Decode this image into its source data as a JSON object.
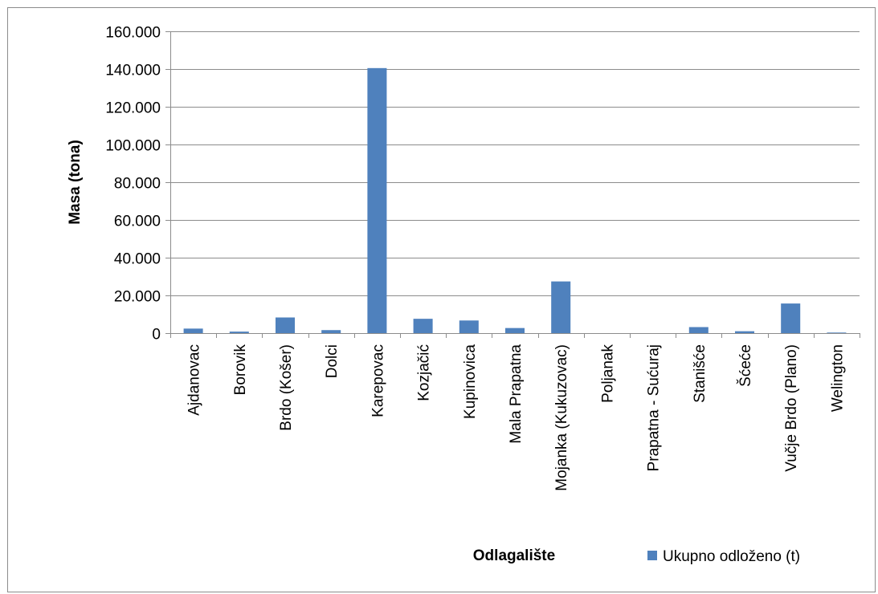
{
  "chart_data": {
    "type": "bar",
    "xlabel": "Odlagalište",
    "ylabel": "Masa (tona)",
    "ylim": [
      0,
      160000
    ],
    "y_ticks": [
      0,
      20000,
      40000,
      60000,
      80000,
      100000,
      120000,
      140000,
      160000
    ],
    "y_tick_labels": [
      "0",
      "20.000",
      "40.000",
      "60.000",
      "80.000",
      "100.000",
      "120.000",
      "140.000",
      "160.000"
    ],
    "grid": true,
    "legend_position": "bottom-right",
    "categories": [
      "Ajdanovac",
      "Borovik",
      "Brdo (Košer)",
      "Dolci",
      "Karepovac",
      "Kozjačić",
      "Kupinovica",
      "Mala Prapatna",
      "Mojanka (Kukuzovac)",
      "Poljanak",
      "Prapatna - Sućuraj",
      "Stanišće",
      "Šćeće",
      "Vučje Brdo (Plano)",
      "Welington"
    ],
    "series": [
      {
        "name": "Ukupno odloženo (t)",
        "color": "#4f81bd",
        "values": [
          2400,
          800,
          8300,
          1600,
          140500,
          7600,
          6700,
          2700,
          27400,
          0,
          0,
          3200,
          1000,
          15700,
          300
        ]
      }
    ]
  }
}
